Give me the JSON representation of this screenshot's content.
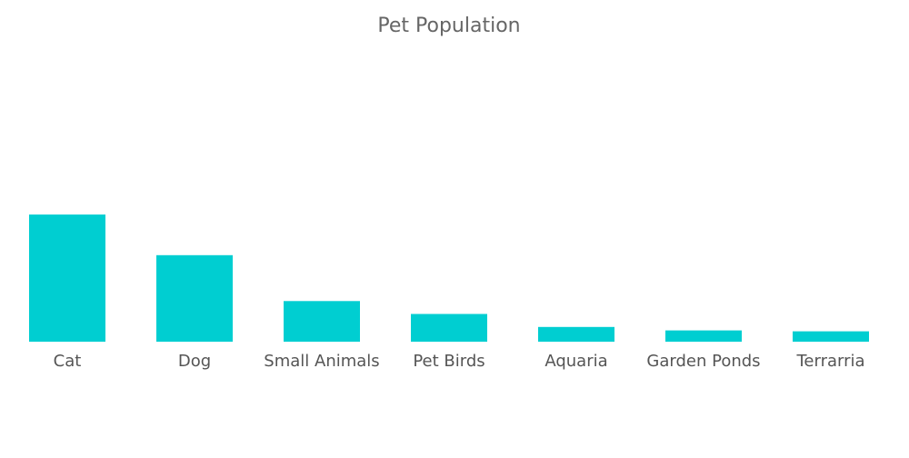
{
  "chart_data": {
    "type": "bar",
    "title": "Pet Population",
    "xlabel": "",
    "ylabel": "",
    "categories": [
      "Cat",
      "Dog",
      "Small Animals",
      "Pet Birds",
      "Aquaria",
      "Garden Ponds",
      "Terrarria"
    ],
    "values": [
      14.7,
      10.0,
      4.7,
      3.2,
      1.7,
      1.3,
      1.2
    ],
    "ylim": [
      0,
      29
    ],
    "grid": false,
    "legend": "none",
    "bar_color": "#00CED1"
  }
}
